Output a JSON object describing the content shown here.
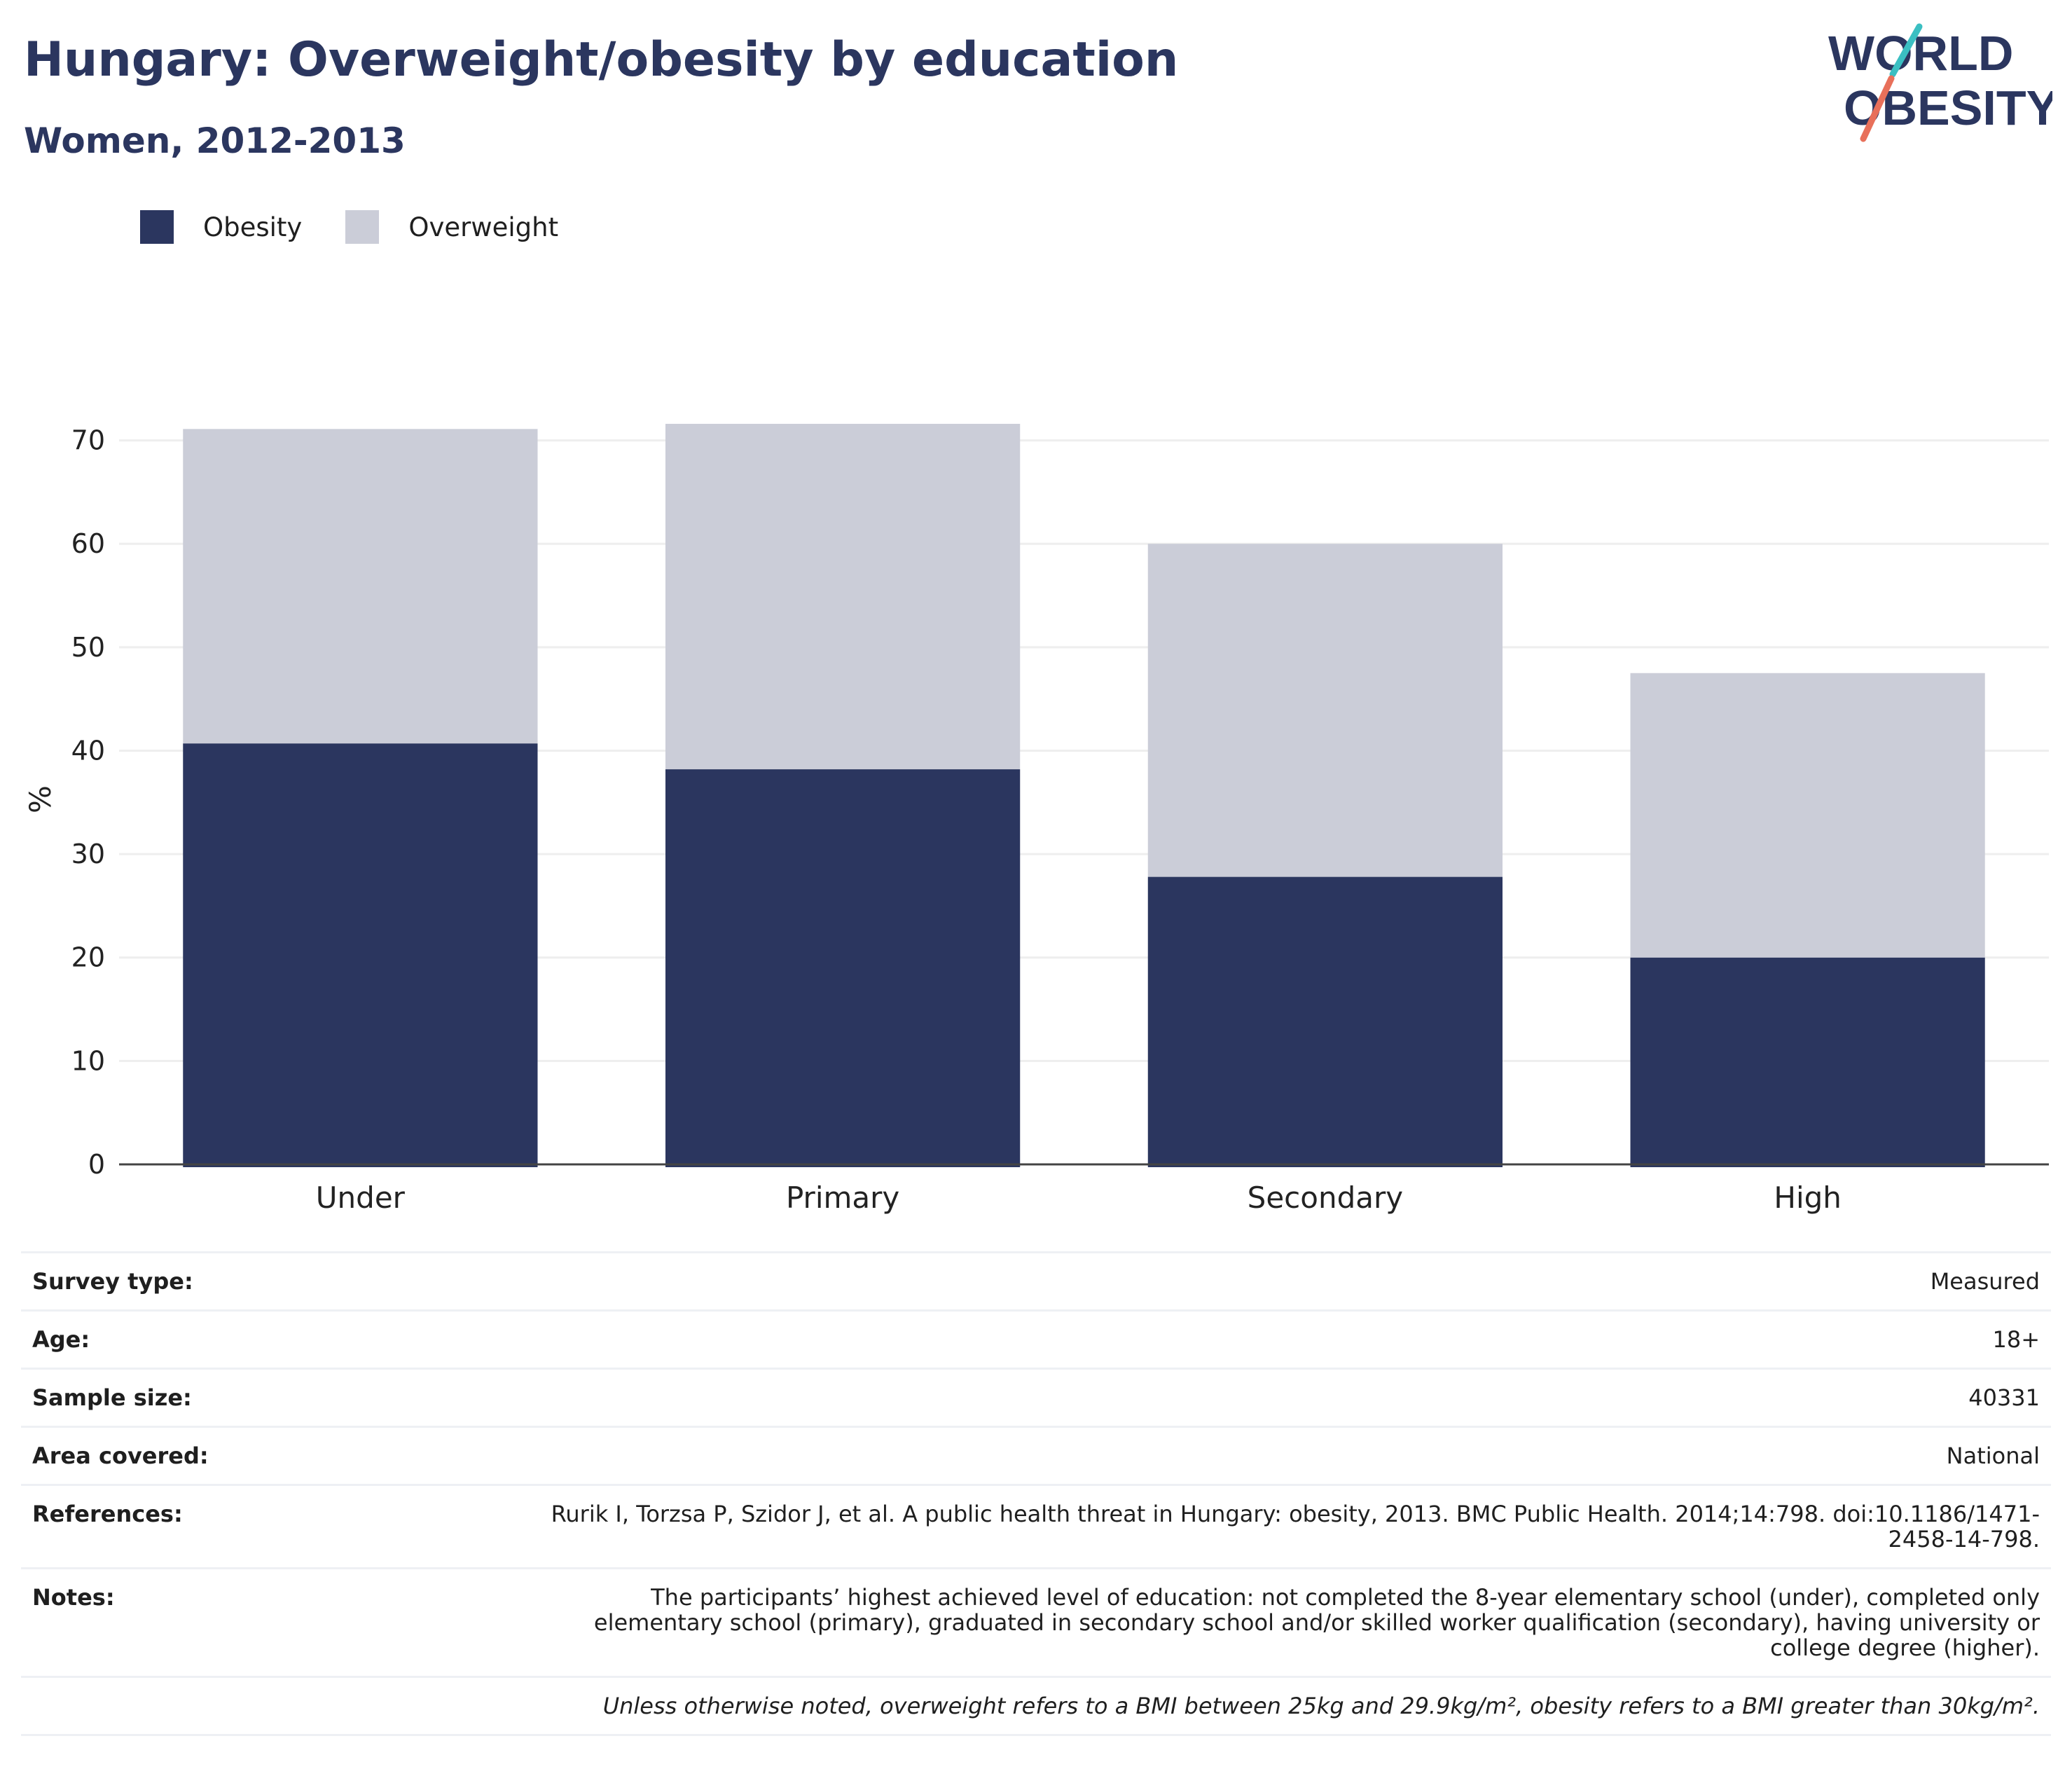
{
  "header": {
    "title": "Hungary: Overweight/obesity by education",
    "subtitle": "Women, 2012-2013"
  },
  "logo": {
    "line1": "WORLD",
    "line2": "OBESITY",
    "accent_teal": "#3bbfc2",
    "accent_coral": "#e8705a"
  },
  "legend": [
    {
      "label": "Obesity",
      "color": "#2b365f"
    },
    {
      "label": "Overweight",
      "color": "#cbcdd8"
    }
  ],
  "chart_data": {
    "type": "bar",
    "stacked": true,
    "categories": [
      "Under",
      "Primary",
      "Secondary",
      "High"
    ],
    "series": [
      {
        "name": "Obesity",
        "values": [
          40.7,
          38.2,
          27.8,
          20.0
        ],
        "color": "#2b365f"
      },
      {
        "name": "Overweight",
        "values": [
          30.4,
          33.4,
          32.2,
          27.5
        ],
        "color": "#cbcdd8"
      }
    ],
    "ylabel": "%",
    "yticks": [
      0,
      10,
      20,
      30,
      40,
      50,
      60,
      70
    ],
    "ylim": [
      0,
      76
    ],
    "grid": true,
    "legend_position": "top-left"
  },
  "meta": {
    "rows": [
      {
        "key": "Survey type:",
        "value": "Measured"
      },
      {
        "key": "Age:",
        "value": "18+"
      },
      {
        "key": "Sample size:",
        "value": "40331"
      },
      {
        "key": "Area covered:",
        "value": "National"
      },
      {
        "key": "References:",
        "value": "Rurik I, Torzsa P, Szidor J, et al. A public health threat in Hungary: obesity, 2013. BMC Public Health. 2014;14:798. doi:10.1186/1471-2458-14-798."
      },
      {
        "key": "Notes:",
        "value": "The participants’ highest achieved level of education: not completed the 8-year elementary school (under), completed only elementary school (primary), graduated in secondary school and/or skilled worker qualification (secondary), having university or college degree (higher)."
      }
    ],
    "footnote": "Unless otherwise noted, overweight refers to a BMI between 25kg and 29.9kg/m², obesity refers to a BMI greater than 30kg/m²."
  }
}
